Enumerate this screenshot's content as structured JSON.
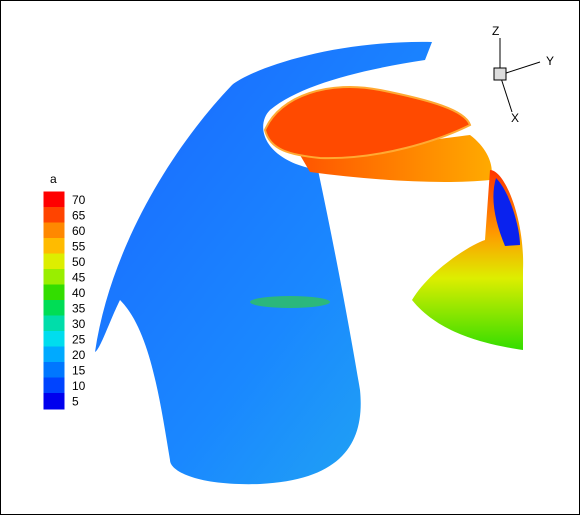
{
  "legend": {
    "title": "a",
    "levels": [
      70,
      65,
      60,
      55,
      50,
      45,
      40,
      35,
      30,
      25,
      20,
      15,
      10,
      5
    ],
    "colors": [
      "#ff0000",
      "#ff4400",
      "#ff8800",
      "#ffbb00",
      "#ddee00",
      "#99ee00",
      "#33dd00",
      "#00dd55",
      "#00ddaa",
      "#00ddee",
      "#00aaff",
      "#0077ff",
      "#0044ff",
      "#0000ee"
    ]
  },
  "axes": {
    "z": "Z",
    "y": "Y",
    "x": "X"
  }
}
